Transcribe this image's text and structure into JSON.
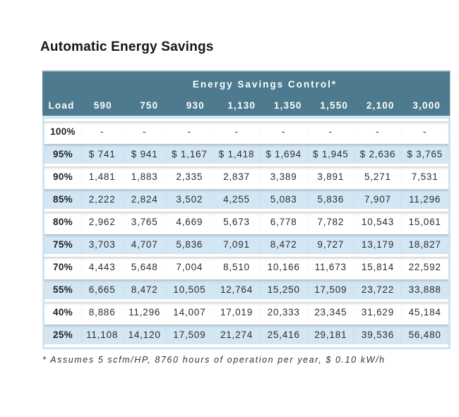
{
  "page_title": "Automatic Energy Savings",
  "chart_data": {
    "type": "table",
    "title": "Automatic Energy Savings",
    "band_header": "Energy Savings Control*",
    "columns": [
      "Load",
      "590",
      "750",
      "930",
      "1,130",
      "1,350",
      "1,550",
      "2,100",
      "3,000"
    ],
    "rows": [
      {
        "load": "100%",
        "values": [
          "-",
          "-",
          "-",
          "-",
          "-",
          "-",
          "-",
          "-"
        ]
      },
      {
        "load": "95%",
        "values": [
          "$ 741",
          "$ 941",
          "$ 1,167",
          "$ 1,418",
          "$ 1,694",
          "$ 1,945",
          "$ 2,636",
          "$ 3,765"
        ]
      },
      {
        "load": "90%",
        "values": [
          "1,481",
          "1,883",
          "2,335",
          "2,837",
          "3,389",
          "3,891",
          "5,271",
          "7,531"
        ]
      },
      {
        "load": "85%",
        "values": [
          "2,222",
          "2,824",
          "3,502",
          "4,255",
          "5,083",
          "5,836",
          "7,907",
          "11,296"
        ]
      },
      {
        "load": "80%",
        "values": [
          "2,962",
          "3,765",
          "4,669",
          "5,673",
          "6,778",
          "7,782",
          "10,543",
          "15,061"
        ]
      },
      {
        "load": "75%",
        "values": [
          "3,703",
          "4,707",
          "5,836",
          "7,091",
          "8,472",
          "9,727",
          "13,179",
          "18,827"
        ]
      },
      {
        "load": "70%",
        "values": [
          "4,443",
          "5,648",
          "7,004",
          "8,510",
          "10,166",
          "11,673",
          "15,814",
          "22,592"
        ]
      },
      {
        "load": "55%",
        "values": [
          "6,665",
          "8,472",
          "10,505",
          "12,764",
          "15,250",
          "17,509",
          "23,722",
          "33,888"
        ]
      },
      {
        "load": "40%",
        "values": [
          "8,886",
          "11,296",
          "14,007",
          "17,019",
          "20,333",
          "23,345",
          "31,629",
          "45,184"
        ]
      },
      {
        "load": "25%",
        "values": [
          "11,108",
          "14,120",
          "17,509",
          "21,274",
          "25,416",
          "29,181",
          "39,536",
          "56,480"
        ]
      }
    ],
    "footnote": "* Assumes 5 scfm/HP, 8760 hours of operation per year, $ 0.10 kW/h",
    "layout_hints": {
      "row_stripe_pattern": "white/blue alternating starting white at 100% row",
      "band_header_alignment": "centered over numeric columns"
    }
  },
  "colors": {
    "header_teal": "#4d7a8e",
    "header_top_highlight": "#84a4b2",
    "row_blue": "#d3e6f4",
    "border_blue": "#cfe3f2",
    "title_text": "#161616",
    "header_text": "#ffffff",
    "cell_text": "#2d2d2d"
  }
}
